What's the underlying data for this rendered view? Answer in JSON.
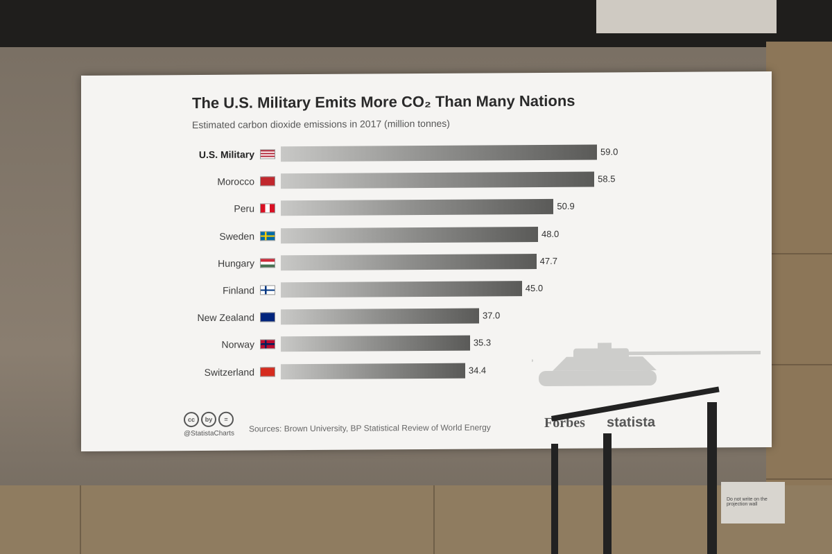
{
  "chart_data": {
    "type": "bar",
    "orientation": "horizontal",
    "title": "The U.S. Military Emits More CO₂ Than Many Nations",
    "subtitle": "Estimated carbon dioxide emissions in 2017 (million tonnes)",
    "categories": [
      "U.S. Military",
      "Morocco",
      "Peru",
      "Sweden",
      "Hungary",
      "Finland",
      "New Zealand",
      "Norway",
      "Switzerland"
    ],
    "values": [
      59.0,
      58.5,
      50.9,
      48.0,
      47.7,
      45.0,
      37.0,
      35.3,
      34.4
    ],
    "value_labels": [
      "59.0",
      "58.5",
      "50.9",
      "48.0",
      "47.7",
      "45.0",
      "37.0",
      "35.3",
      "34.4"
    ],
    "flags": [
      "us-flag",
      "morocco-flag",
      "peru-flag",
      "sweden-flag",
      "hungary-flag",
      "finland-flag",
      "new-zealand-flag",
      "norway-flag",
      "switzerland-flag"
    ],
    "xlim": [
      0,
      59.0
    ],
    "grid": false,
    "legend": "none"
  },
  "footer": {
    "license_icons": [
      "cc",
      "by",
      "="
    ],
    "handle": "@StatistaCharts",
    "sources": "Sources: Brown University, BP Statistical Review of World Energy",
    "logo_forbes": "Forbes",
    "logo_statista": "statista"
  },
  "sign": {
    "text": "Do not write on the projection wall"
  },
  "colors": {
    "bar_dark": "#5a5a58",
    "bar_light": "#c8c8c6",
    "screen_bg": "#f5f4f2"
  }
}
